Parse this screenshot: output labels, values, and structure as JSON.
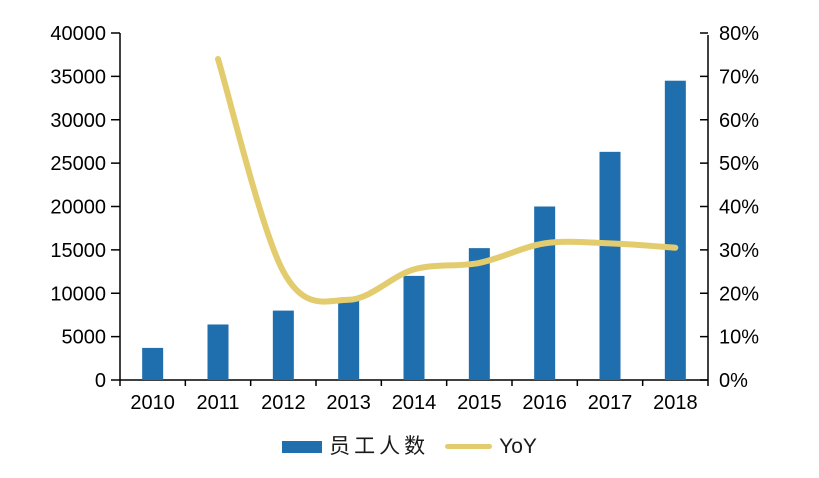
{
  "chart_data": {
    "type": "combo",
    "title": "",
    "xlabel": "",
    "ylabel": "",
    "categories": [
      "2010",
      "2011",
      "2012",
      "2013",
      "2014",
      "2015",
      "2016",
      "2017",
      "2018"
    ],
    "series": [
      {
        "name": "员工人数",
        "type": "bar",
        "axis": "left",
        "color": "#1F6EAD",
        "values": [
          3700,
          6400,
          8000,
          9400,
          12000,
          15200,
          20000,
          26300,
          34500
        ]
      },
      {
        "name": "YoY",
        "type": "line",
        "axis": "right",
        "color": "#E3CC6E",
        "unit": "%",
        "values": [
          null,
          74,
          25,
          18.5,
          25.5,
          27,
          31.5,
          31.5,
          30.5
        ]
      }
    ],
    "left_axis": {
      "min": 0,
      "max": 40000,
      "step": 5000,
      "tick_labels": [
        "0",
        "5000",
        "10000",
        "15000",
        "20000",
        "25000",
        "30000",
        "35000",
        "40000"
      ]
    },
    "right_axis": {
      "min": 0,
      "max": 80,
      "step": 10,
      "tick_labels": [
        "0%",
        "10%",
        "20%",
        "30%",
        "40%",
        "50%",
        "60%",
        "70%",
        "80%"
      ]
    },
    "grid": false,
    "legend_position": "bottom"
  },
  "legend": {
    "items": [
      {
        "label": "员工人数",
        "swatch": "bar",
        "color": "#1F6EAD"
      },
      {
        "label": "YoY",
        "swatch": "line",
        "color": "#E3CC6E"
      }
    ]
  },
  "colors": {
    "bar": "#1F6EAD",
    "line": "#E3CC6E",
    "axis": "#000000",
    "text": "#000000",
    "background": "#FFFFFF"
  }
}
